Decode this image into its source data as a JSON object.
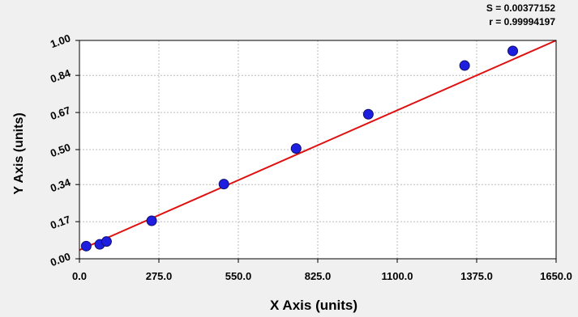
{
  "stats": {
    "s_text": "S = 0.00377152",
    "r_text": "r = 0.99994197"
  },
  "chart_data": {
    "type": "scatter",
    "xlabel": "X Axis (units)",
    "ylabel": "Y Axis (units)",
    "xlim": [
      0,
      1650
    ],
    "ylim": [
      0,
      1.0
    ],
    "x_ticks": [
      0,
      275,
      550,
      825,
      1100,
      1375,
      1650
    ],
    "x_tick_labels": [
      "0.0",
      "275.0",
      "550.0",
      "825.0",
      "1100.0",
      "1375.0",
      "1650.0"
    ],
    "y_ticks": [
      0.0,
      0.17,
      0.34,
      0.5,
      0.67,
      0.84,
      1.0
    ],
    "y_tick_labels": [
      "0.00",
      "0.17",
      "0.34",
      "0.50",
      "0.67",
      "0.84",
      "1.00"
    ],
    "grid": true,
    "series": [
      {
        "type": "scatter",
        "x": [
          23.4,
          70.3,
          93.8,
          250,
          500,
          750,
          1000,
          1333.3,
          1500
        ],
        "y": [
          0.058,
          0.066,
          0.079,
          0.174,
          0.342,
          0.505,
          0.662,
          0.885,
          0.952
        ]
      },
      {
        "type": "line",
        "x": [
          0,
          1650
        ],
        "y": [
          0.04,
          1.0
        ]
      }
    ],
    "colors": {
      "points": "#1e1ee0",
      "fit_line": "#e01010",
      "grid": "#bbbbbb",
      "background": "#f0f0f0",
      "plot_background": "#ffffff"
    }
  }
}
